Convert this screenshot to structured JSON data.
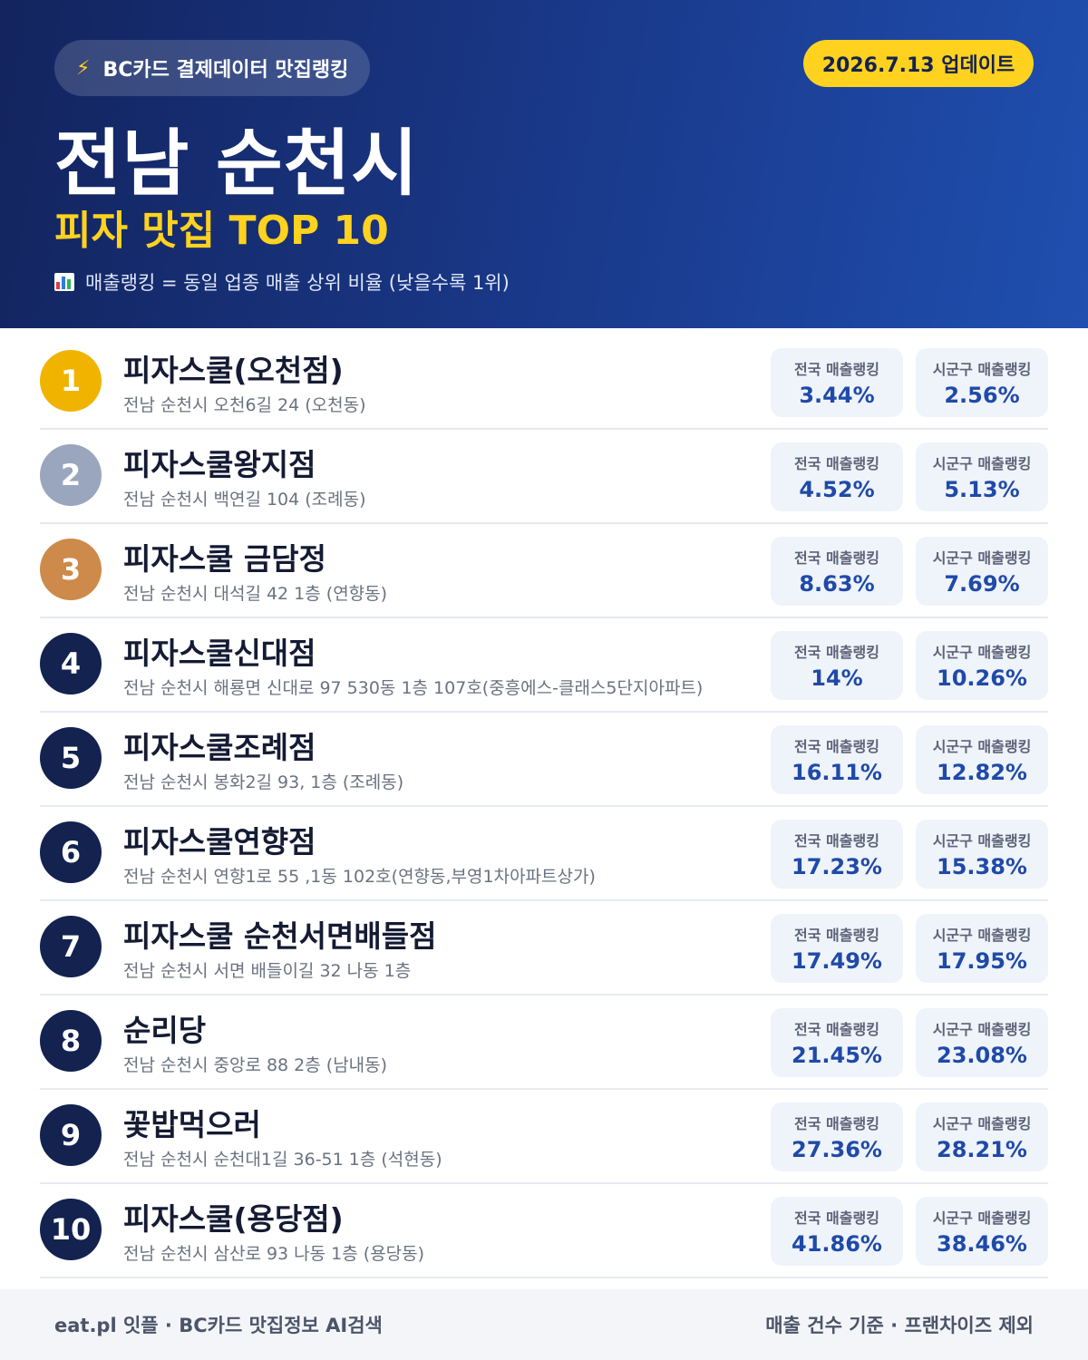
{
  "header": {
    "badge": "BC카드 결제데이터 맛집랭킹",
    "update": "2026.7.13 업데이트",
    "title": "전남 순천시",
    "subtitle": "피자 맛집 TOP 10",
    "note": "매출랭킹 = 동일 업종 매출 상위 비율 (낮을수록 1위)",
    "accent": "#ffd21f"
  },
  "labels": {
    "national": "전국 매출랭킹",
    "local": "시군구 매출랭킹"
  },
  "rank_colors": {
    "gold": "#f0b400",
    "silver": "#9aa6be",
    "bronze": "#cd8a4a",
    "default": "#13224f"
  },
  "items": [
    {
      "rank": "1",
      "name": "피자스쿨(오천점)",
      "address": "전남 순천시 오천6길 24 (오천동)",
      "national": "3.44%",
      "local": "2.56%"
    },
    {
      "rank": "2",
      "name": "피자스쿨왕지점",
      "address": "전남 순천시 백연길 104 (조례동)",
      "national": "4.52%",
      "local": "5.13%"
    },
    {
      "rank": "3",
      "name": "피자스쿨 금담정",
      "address": "전남 순천시 대석길 42 1층 (연향동)",
      "national": "8.63%",
      "local": "7.69%"
    },
    {
      "rank": "4",
      "name": "피자스쿨신대점",
      "address": "전남 순천시 해룡면 신대로 97 530동 1층 107호(중흥에스-클래스5단지아파트)",
      "national": "14%",
      "local": "10.26%"
    },
    {
      "rank": "5",
      "name": "피자스쿨조례점",
      "address": "전남 순천시 봉화2길 93, 1층 (조례동)",
      "national": "16.11%",
      "local": "12.82%"
    },
    {
      "rank": "6",
      "name": "피자스쿨연향점",
      "address": "전남 순천시 연향1로 55 ,1동 102호(연향동,부영1차아파트상가)",
      "national": "17.23%",
      "local": "15.38%"
    },
    {
      "rank": "7",
      "name": "피자스쿨 순천서면배들점",
      "address": "전남 순천시 서면 배들이길 32 나동 1층",
      "national": "17.49%",
      "local": "17.95%"
    },
    {
      "rank": "8",
      "name": "순리당",
      "address": "전남 순천시 중앙로 88 2층 (남내동)",
      "national": "21.45%",
      "local": "23.08%"
    },
    {
      "rank": "9",
      "name": "꽃밥먹으러",
      "address": "전남 순천시 순천대1길 36-51 1층 (석현동)",
      "national": "27.36%",
      "local": "28.21%"
    },
    {
      "rank": "10",
      "name": "피자스쿨(용당점)",
      "address": "전남 순천시 삼산로 93 나동 1층 (용당동)",
      "national": "41.86%",
      "local": "38.46%"
    }
  ],
  "footer": {
    "left": "eat.pl 잇플 · BC카드 맛집정보 AI검색",
    "right": "매출 건수 기준 · 프랜차이즈 제외"
  }
}
